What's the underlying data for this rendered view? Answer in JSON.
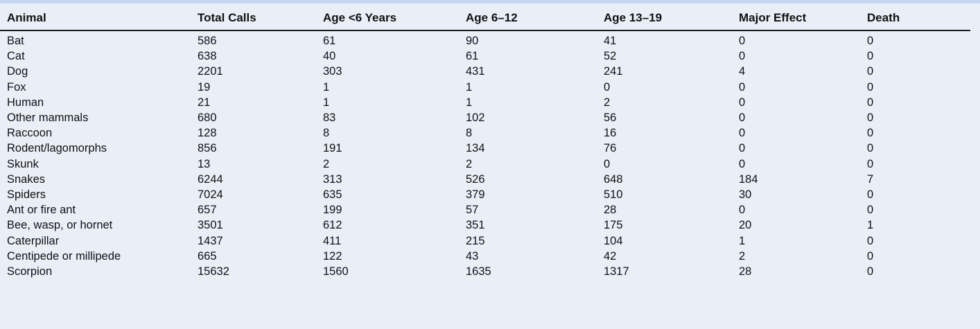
{
  "table": {
    "headers": [
      "Animal",
      "Total Calls",
      "Age <6 Years",
      "Age 6–12",
      "Age 13–19",
      "Major Effect",
      "Death"
    ],
    "rows": [
      [
        "Bat",
        "586",
        "61",
        "90",
        "41",
        "0",
        "0"
      ],
      [
        "Cat",
        "638",
        "40",
        "61",
        "52",
        "0",
        "0"
      ],
      [
        "Dog",
        "2201",
        "303",
        "431",
        "241",
        "4",
        "0"
      ],
      [
        "Fox",
        "19",
        "1",
        "1",
        "0",
        "0",
        "0"
      ],
      [
        "Human",
        "21",
        "1",
        "1",
        "2",
        "0",
        "0"
      ],
      [
        "Other mammals",
        "680",
        "83",
        "102",
        "56",
        "0",
        "0"
      ],
      [
        "Raccoon",
        "128",
        "8",
        "8",
        "16",
        "0",
        "0"
      ],
      [
        "Rodent/lagomorphs",
        "856",
        "191",
        "134",
        "76",
        "0",
        "0"
      ],
      [
        "Skunk",
        "13",
        "2",
        "2",
        "0",
        "0",
        "0"
      ],
      [
        "Snakes",
        "6244",
        "313",
        "526",
        "648",
        "184",
        "7"
      ],
      [
        "Spiders",
        "7024",
        "635",
        "379",
        "510",
        "30",
        "0"
      ],
      [
        "Ant or fire ant",
        "657",
        "199",
        "57",
        "28",
        "0",
        "0"
      ],
      [
        "Bee, wasp, or hornet",
        "3501",
        "612",
        "351",
        "175",
        "20",
        "1"
      ],
      [
        "Caterpillar",
        "1437",
        "411",
        "215",
        "104",
        "1",
        "0"
      ],
      [
        "Centipede or millipede",
        "665",
        "122",
        "43",
        "42",
        "2",
        "0"
      ],
      [
        "Scorpion",
        "15632",
        "1560",
        "1635",
        "1317",
        "28",
        "0"
      ]
    ]
  },
  "colors": {
    "background": "#e9eef7",
    "top_rule": "#c6d6ee",
    "header_rule": "#1a1a1a",
    "text": "#111111"
  }
}
